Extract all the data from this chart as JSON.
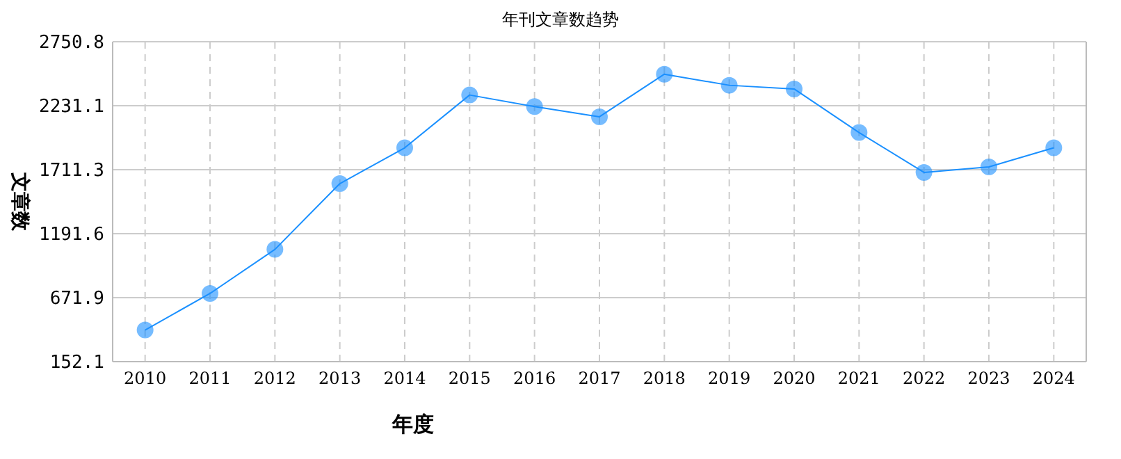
{
  "chart_data": {
    "type": "line",
    "title": "年刊文章数趋势",
    "xlabel": "年度",
    "ylabel": "文章数",
    "categories": [
      "2010",
      "2011",
      "2012",
      "2013",
      "2014",
      "2015",
      "2016",
      "2017",
      "2018",
      "2019",
      "2020",
      "2021",
      "2022",
      "2023",
      "2024"
    ],
    "series": [
      {
        "color": "#1a90ff",
        "values": [
          409,
          706,
          1064,
          1598,
          1889,
          2318,
          2224,
          2141,
          2487,
          2397,
          2367,
          2013,
          1689,
          1734,
          1889
        ]
      }
    ],
    "ylim": [
      152.1,
      2750.8
    ],
    "yticks": [
      {
        "value": 152.1,
        "label": "152.1"
      },
      {
        "value": 671.9,
        "label": "671.9"
      },
      {
        "value": 1191.6,
        "label": "1191.6"
      },
      {
        "value": 1711.3,
        "label": "1711.3"
      },
      {
        "value": 2231.1,
        "label": "2231.1"
      },
      {
        "value": 2750.8,
        "label": "2750.8"
      }
    ],
    "grid": true,
    "marker": "circle",
    "line_style": "solid"
  }
}
